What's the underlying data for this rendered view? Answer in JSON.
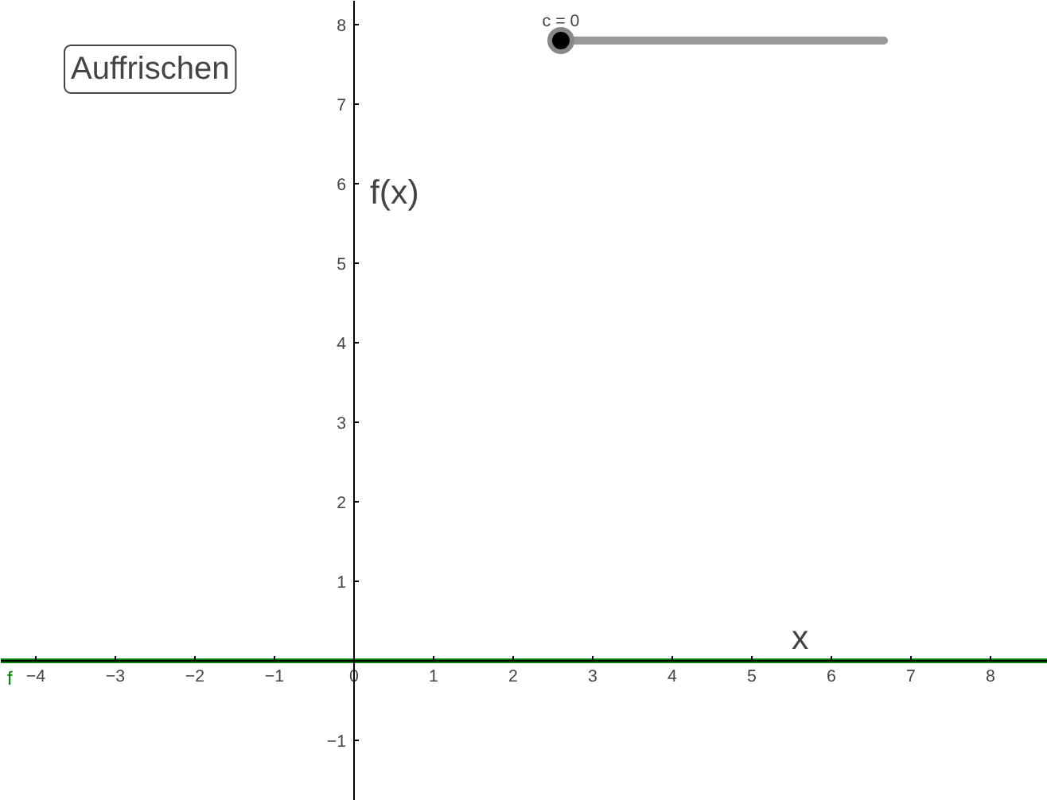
{
  "chart_data": {
    "type": "line",
    "xlabel": "x",
    "ylabel": "f(x)",
    "series": [
      {
        "name": "f",
        "color": "#008000",
        "x": [
          -4.44,
          8.72
        ],
        "values": [
          0,
          0
        ]
      }
    ],
    "xlim": [
      -4.44,
      8.72
    ],
    "ylim": [
      -1.76,
      8.3
    ],
    "xticks": [
      {
        "value": -4,
        "label": "−4"
      },
      {
        "value": -3,
        "label": "−3"
      },
      {
        "value": -2,
        "label": "−2"
      },
      {
        "value": -1,
        "label": "−1"
      },
      0,
      1,
      2,
      3,
      4,
      5,
      6,
      7,
      8
    ],
    "yticks": [
      {
        "value": -1,
        "label": "−1"
      },
      1,
      2,
      3,
      4,
      5,
      6,
      7,
      8
    ],
    "annotations": [
      "Auffrischen",
      "c = 0"
    ],
    "grid": false,
    "legend": false,
    "marker": "none",
    "line_style": "solid"
  }
}
